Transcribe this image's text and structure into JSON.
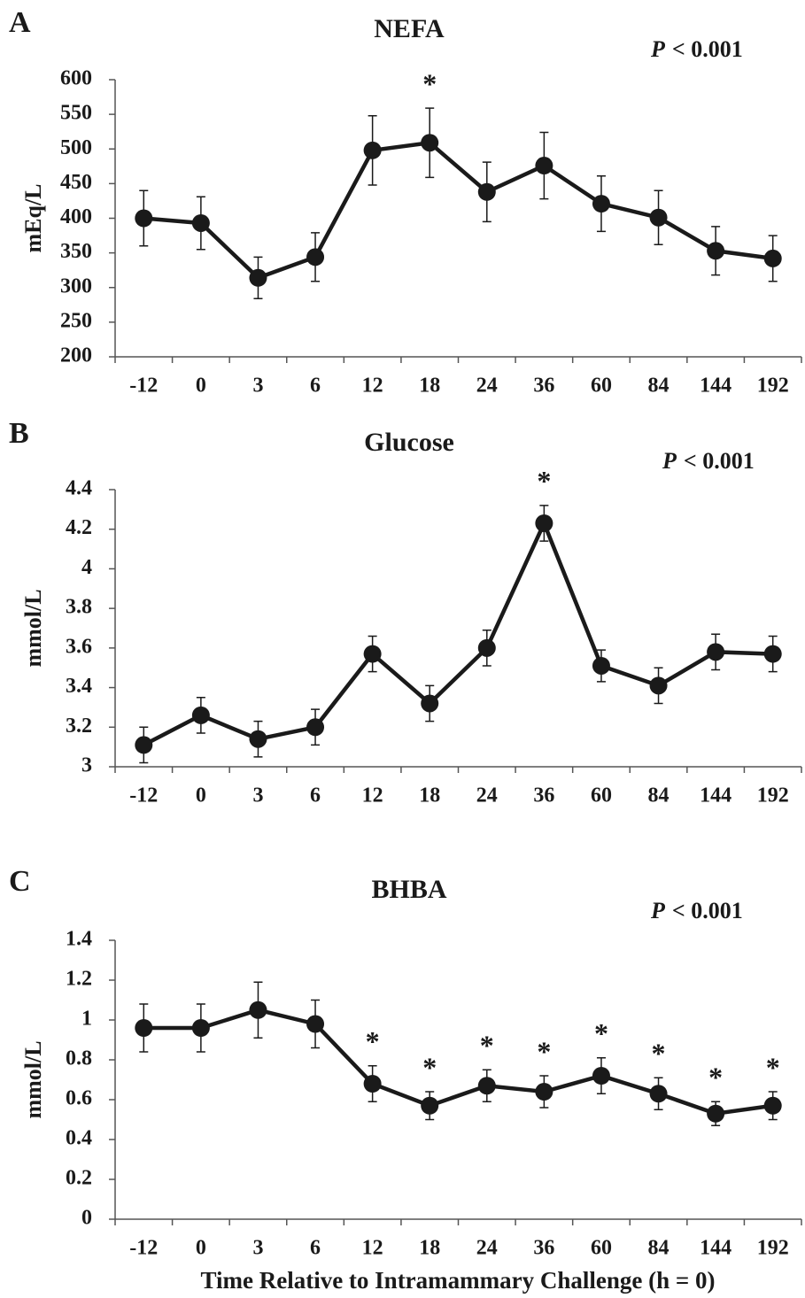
{
  "chart_data": [
    {
      "type": "line",
      "panel_label": "A",
      "title": "NEFA",
      "p_label": "P",
      "p_text": "< 0.001",
      "ylabel": "mEq/L",
      "categories": [
        "-12",
        "0",
        "3",
        "6",
        "12",
        "18",
        "24",
        "36",
        "60",
        "84",
        "144",
        "192"
      ],
      "values": [
        400,
        393,
        314,
        344,
        498,
        509,
        438,
        476,
        421,
        401,
        353,
        342
      ],
      "errors": [
        40,
        38,
        30,
        35,
        50,
        50,
        43,
        48,
        40,
        39,
        35,
        33
      ],
      "markers": [
        null,
        null,
        null,
        null,
        null,
        "*",
        null,
        null,
        null,
        null,
        null,
        null
      ],
      "color": "#1a1a1a",
      "ylim": [
        200,
        600
      ],
      "yticks": [
        200,
        250,
        300,
        350,
        400,
        450,
        500,
        550,
        600
      ],
      "grid": false
    },
    {
      "type": "line",
      "panel_label": "B",
      "title": "Glucose",
      "p_label": "P",
      "p_text": "< 0.001",
      "ylabel": "mmol/L",
      "categories": [
        "-12",
        "0",
        "3",
        "6",
        "12",
        "18",
        "24",
        "36",
        "60",
        "84",
        "144",
        "192"
      ],
      "values": [
        3.11,
        3.26,
        3.14,
        3.2,
        3.57,
        3.32,
        3.6,
        4.23,
        3.51,
        3.41,
        3.58,
        3.57
      ],
      "errors": [
        0.09,
        0.09,
        0.09,
        0.09,
        0.09,
        0.09,
        0.09,
        0.09,
        0.08,
        0.09,
        0.09,
        0.09
      ],
      "markers": [
        null,
        null,
        null,
        null,
        null,
        null,
        null,
        "*",
        null,
        null,
        null,
        null
      ],
      "color": "#1a1a1a",
      "ylim": [
        3,
        4.4
      ],
      "yticks": [
        3,
        3.2,
        3.4,
        3.6,
        3.8,
        4,
        4.2,
        4.4
      ],
      "grid": false
    },
    {
      "type": "line",
      "panel_label": "C",
      "title": "BHBA",
      "p_label": "P",
      "p_text": "< 0.001",
      "ylabel": "mmol/L",
      "xlabel": "Time Relative to Intramammary Challenge (h = 0)",
      "categories": [
        "-12",
        "0",
        "3",
        "6",
        "12",
        "18",
        "24",
        "36",
        "60",
        "84",
        "144",
        "192"
      ],
      "values": [
        0.96,
        0.96,
        1.05,
        0.98,
        0.68,
        0.57,
        0.67,
        0.64,
        0.72,
        0.63,
        0.53,
        0.57
      ],
      "errors": [
        0.12,
        0.12,
        0.14,
        0.12,
        0.09,
        0.07,
        0.08,
        0.08,
        0.09,
        0.08,
        0.06,
        0.07
      ],
      "markers": [
        null,
        null,
        null,
        null,
        "*",
        "*",
        "*",
        "*",
        "*",
        "*",
        "*",
        "*"
      ],
      "color": "#1a1a1a",
      "ylim": [
        0,
        1.4
      ],
      "yticks": [
        0,
        0.2,
        0.4,
        0.6,
        0.8,
        1,
        1.2,
        1.4
      ],
      "grid": false
    }
  ]
}
